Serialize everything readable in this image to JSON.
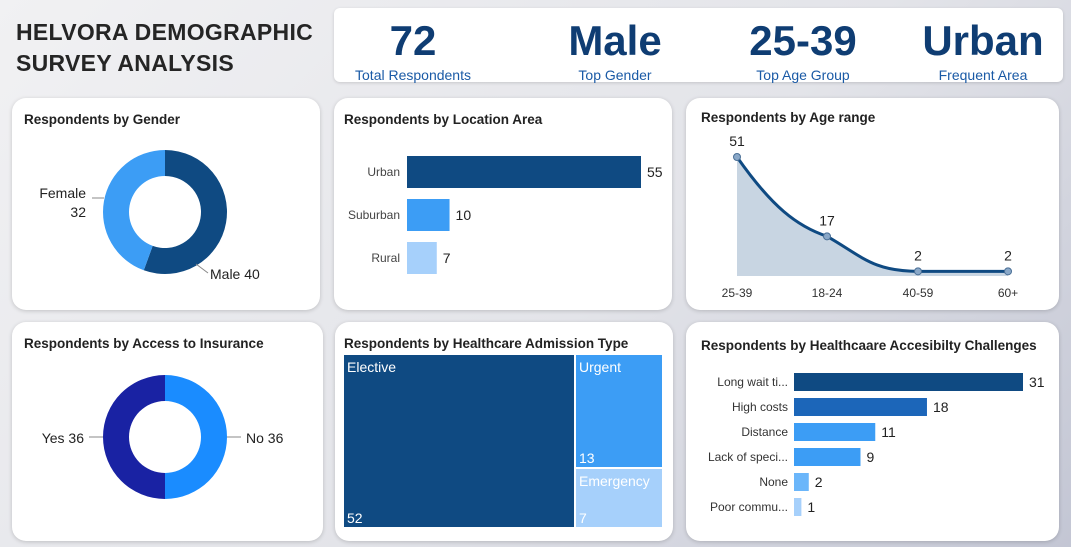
{
  "dashboard": {
    "title_line1": "HELVORA DEMOGRAPHIC",
    "title_line2": "SURVEY ANALYSIS"
  },
  "kpis": [
    {
      "value": "72",
      "label": "Total Respondents"
    },
    {
      "value": "Male",
      "label": "Top Gender"
    },
    {
      "value": "25-39",
      "label": "Top Age Group"
    },
    {
      "value": "Urban",
      "label": "Frequent Area"
    }
  ],
  "colors": {
    "dark_blue": "#0f4a82",
    "mid_blue": "#3c9df5",
    "light_blue": "#a6d0fb",
    "navy": "#1922a3",
    "bright_blue": "#1a8cff"
  },
  "chart_data": [
    {
      "id": "gender",
      "type": "pie",
      "title": "Respondents by Gender",
      "categories": [
        "Male",
        "Female"
      ],
      "values": [
        40,
        32
      ]
    },
    {
      "id": "location",
      "type": "bar",
      "title": "Respondents by Location Area",
      "categories": [
        "Urban",
        "Suburban",
        "Rural"
      ],
      "values": [
        55,
        10,
        7
      ]
    },
    {
      "id": "age",
      "type": "area",
      "title": "Respondents by Age range",
      "categories": [
        "25-39",
        "18-24",
        "40-59",
        "60+"
      ],
      "values": [
        51,
        17,
        2,
        2
      ]
    },
    {
      "id": "insurance",
      "type": "pie",
      "title": "Respondents by Access to Insurance",
      "categories": [
        "No",
        "Yes"
      ],
      "values": [
        36,
        36
      ]
    },
    {
      "id": "admission",
      "type": "treemap",
      "title": "Respondents by Healthcare Admission Type",
      "categories": [
        "Elective",
        "Urgent",
        "Emergency"
      ],
      "values": [
        52,
        13,
        7
      ]
    },
    {
      "id": "challenges",
      "type": "bar",
      "title": "Respondents by Healthcaare Accesibilty Challenges",
      "categories": [
        "Long wait ti...",
        "High costs",
        "Distance",
        "Lack of speci...",
        "None",
        "Poor commu..."
      ],
      "values": [
        31,
        18,
        11,
        9,
        2,
        1
      ]
    }
  ]
}
